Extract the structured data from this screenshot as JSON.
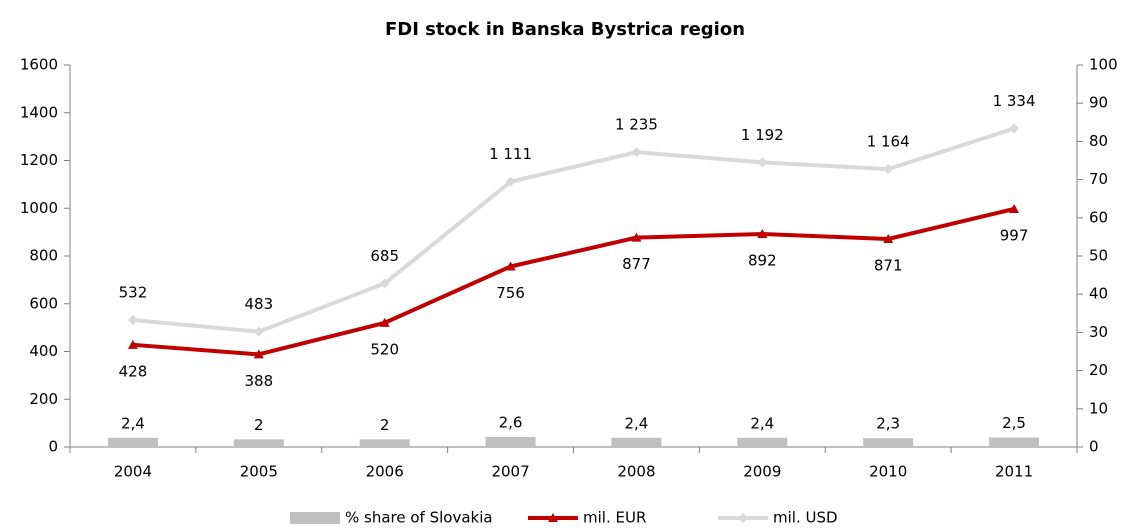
{
  "chart_data": {
    "type": "combo",
    "title": "FDI stock in Banska Bystrica region",
    "categories": [
      "2004",
      "2005",
      "2006",
      "2007",
      "2008",
      "2009",
      "2010",
      "2011"
    ],
    "ylim": [
      0,
      1600
    ],
    "yticks": [
      0,
      200,
      400,
      600,
      800,
      1000,
      1200,
      1400,
      1600
    ],
    "y2lim": [
      0,
      100
    ],
    "y2ticks": [
      0,
      10,
      20,
      30,
      40,
      50,
      60,
      70,
      80,
      90,
      100
    ],
    "legend": "bottom",
    "series": [
      {
        "name": "% share of Slovakia",
        "type": "bar",
        "axis": "y2",
        "color": "#bfbfbf",
        "values": [
          2.4,
          2,
          2,
          2.6,
          2.4,
          2.4,
          2.3,
          2.5
        ],
        "value_labels": [
          "2,4",
          "2",
          "2",
          "2,6",
          "2,4",
          "2,4",
          "2,3",
          "2,5"
        ]
      },
      {
        "name": "mil. EUR",
        "type": "line",
        "color": "#c00000",
        "marker": "triangle",
        "label_position": "below",
        "values": [
          428,
          388,
          520,
          756,
          877,
          892,
          871,
          997
        ]
      },
      {
        "name": "mil. USD",
        "type": "line",
        "color": "#d9d9d9",
        "marker": "diamond",
        "label_position": "above",
        "values": [
          532,
          483,
          685,
          1111,
          1235,
          1192,
          1164,
          1334
        ],
        "value_labels": [
          "532",
          "483",
          "685",
          "1 111",
          "1 235",
          "1 192",
          "1 164",
          "1 334"
        ]
      }
    ]
  }
}
